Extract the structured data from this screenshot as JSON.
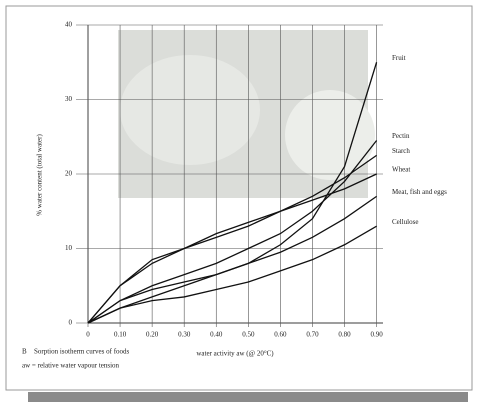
{
  "chart_data": {
    "type": "line",
    "title": "Sorption isotherm curves of foods",
    "figure_label": "B",
    "subtitle": "aw = relative water vapour tension",
    "xlabel": "water activity aw (@ 20°C)",
    "ylabel": "% water content (total water)",
    "x": [
      0,
      0.1,
      0.2,
      0.3,
      0.4,
      0.5,
      0.6,
      0.7,
      0.8,
      0.9
    ],
    "xlim": [
      0,
      0.92
    ],
    "xticks": [
      0,
      {
        "value": 0.1,
        "label": "0.10"
      },
      {
        "value": 0.2,
        "label": "0.20"
      },
      {
        "value": 0.3,
        "label": "0.30"
      },
      {
        "value": 0.4,
        "label": "0.40"
      },
      {
        "value": 0.5,
        "label": "0.50"
      },
      {
        "value": 0.6,
        "label": "0.60"
      },
      {
        "value": 0.7,
        "label": "0.70"
      },
      {
        "value": 0.8,
        "label": "0.80"
      },
      {
        "value": 0.9,
        "label": "0.90"
      }
    ],
    "ylim": [
      0,
      40
    ],
    "yticks": [
      0,
      10,
      20,
      30,
      40
    ],
    "grid": true,
    "series": [
      {
        "name": "Fruit",
        "color": "#111111",
        "values": [
          0,
          2,
          3.5,
          5,
          6.5,
          8,
          10.5,
          14,
          21,
          35
        ]
      },
      {
        "name": "Pectin",
        "color": "#111111",
        "values": [
          0,
          3,
          5,
          6.5,
          8,
          10,
          12,
          15,
          19,
          24.5
        ]
      },
      {
        "name": "Starch",
        "color": "#111111",
        "values": [
          0,
          5,
          8,
          10,
          11.5,
          13,
          15,
          17,
          19.5,
          22.5
        ]
      },
      {
        "name": "Wheat",
        "color": "#111111",
        "values": [
          0,
          5,
          8.5,
          10,
          12,
          13.5,
          15,
          16.5,
          18,
          20
        ]
      },
      {
        "name": "Meat, fish and eggs",
        "color": "#111111",
        "values": [
          0,
          3,
          4.5,
          5.5,
          6.5,
          8,
          9.5,
          11.5,
          14,
          17
        ]
      },
      {
        "name": "Cellulose",
        "color": "#111111",
        "values": [
          0,
          2,
          3,
          3.5,
          4.5,
          5.5,
          7,
          8.5,
          10.5,
          13
        ]
      }
    ]
  }
}
